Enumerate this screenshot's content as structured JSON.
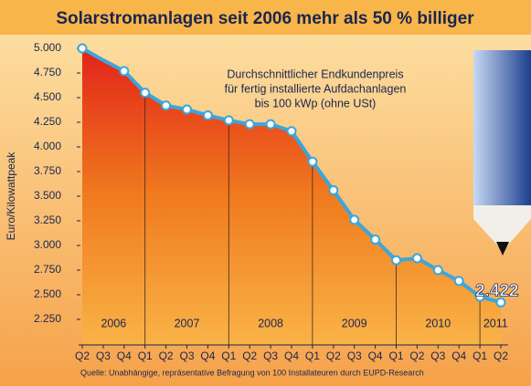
{
  "chart_data": {
    "type": "line",
    "title": "Solarstromanlagen seit 2006 mehr als 50 % billiger",
    "annotation": [
      "Durchschnittlicher Endkundenpreis",
      "für fertig installierte Aufdachanlagen",
      "bis 100 kWp (ohne USt)"
    ],
    "y_label": "Euro/Kilowattpeak",
    "categories": [
      "Q2",
      "Q3",
      "Q4",
      "Q1",
      "Q2",
      "Q3",
      "Q4",
      "Q1",
      "Q2",
      "Q3",
      "Q4",
      "Q1",
      "Q2",
      "Q3",
      "Q4",
      "Q1",
      "Q2",
      "Q3",
      "Q4",
      "Q1",
      "Q2"
    ],
    "years": [
      "2006",
      "2007",
      "2008",
      "2009",
      "2010",
      "2011"
    ],
    "series": [
      {
        "name": "Endkundenpreis",
        "color": "#3aa6dd",
        "values": [
          5.0,
          4.88,
          4.77,
          4.55,
          4.42,
          4.38,
          4.32,
          4.27,
          4.23,
          4.23,
          4.16,
          3.85,
          3.56,
          3.26,
          3.06,
          2.85,
          2.87,
          2.75,
          2.64,
          2.48,
          2.422
        ],
        "value_labels": [
          null,
          null,
          null,
          null,
          null,
          null,
          null,
          null,
          null,
          null,
          null,
          null,
          null,
          null,
          null,
          null,
          null,
          null,
          null,
          null,
          "2.422"
        ]
      }
    ],
    "ylim": [
      2.25,
      5.0
    ],
    "yticks": [
      {
        "value": 2.25,
        "label": "2.250"
      },
      {
        "value": 2.5,
        "label": "2.500"
      },
      {
        "value": 2.75,
        "label": "2.750"
      },
      {
        "value": 3.0,
        "label": "3.000"
      },
      {
        "value": 3.25,
        "label": "3.250"
      },
      {
        "value": 3.5,
        "label": "3.500"
      },
      {
        "value": 3.75,
        "label": "3.750"
      },
      {
        "value": 4.0,
        "label": "4.000"
      },
      {
        "value": 4.25,
        "label": "4.250"
      },
      {
        "value": 4.5,
        "label": "4.500"
      },
      {
        "value": 4.75,
        "label": "4.750"
      },
      {
        "value": 5.0,
        "label": "5.000"
      }
    ],
    "source": "Quelle: Unabhängige, repräsentative Befragung von 100 Installateuren durch EUPD-Research"
  }
}
